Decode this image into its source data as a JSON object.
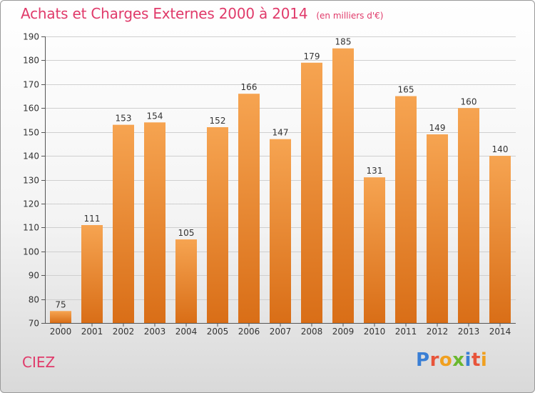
{
  "header": {
    "title": "Achats et Charges Externes 2000 à 2014",
    "subtitle": "(en milliers d'€)"
  },
  "footer": {
    "commune": "CIEZ",
    "logo_text": "Proxiti",
    "logo_colors": [
      "#3a7fd5",
      "#e8543a",
      "#f0a020",
      "#6ab82e",
      "#3a7fd5",
      "#e8543a",
      "#f0a020"
    ]
  },
  "colors": {
    "title": "#e03a6a",
    "bar_light": "#f6a451",
    "bar_dark": "#d96e17",
    "grid": "#cfcfcf",
    "axis_text": "#333333"
  },
  "chart_data": {
    "type": "bar",
    "categories": [
      "2000",
      "2001",
      "2002",
      "2003",
      "2004",
      "2005",
      "2006",
      "2007",
      "2008",
      "2009",
      "2010",
      "2011",
      "2012",
      "2013",
      "2014"
    ],
    "values": [
      75,
      111,
      153,
      154,
      105,
      152,
      166,
      147,
      179,
      185,
      131,
      165,
      149,
      160,
      140
    ],
    "ylim": [
      70,
      190
    ],
    "yticks": [
      70,
      80,
      90,
      100,
      110,
      120,
      130,
      140,
      150,
      160,
      170,
      180,
      190
    ],
    "grid": true,
    "data_labels": true
  }
}
